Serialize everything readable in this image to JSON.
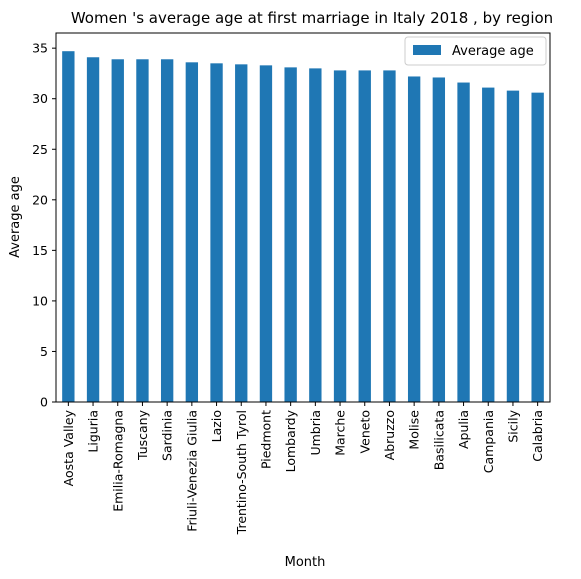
{
  "chart_data": {
    "type": "bar",
    "title": "Women 's average age at first marriage in Italy 2018 , by region",
    "xlabel": "Month",
    "ylabel": "Average age",
    "ylim": [
      0,
      36.5
    ],
    "yticks": [
      0,
      5,
      10,
      15,
      20,
      25,
      30,
      35
    ],
    "grid": false,
    "legend_position": "top-right",
    "bar_color": "#1f77b4",
    "categories": [
      "Aosta Valley",
      "Liguria",
      "Emilia-Romagna",
      "Tuscany",
      "Sardinia",
      "Friuli-Venezia Giulia",
      "Lazio",
      "Trentino-South Tyrol",
      "Piedmont",
      "Lombardy",
      "Umbria",
      "Marche",
      "Veneto",
      "Abruzzo",
      "Molise",
      "Basilicata",
      "Apulia",
      "Campania",
      "Sicily",
      "Calabria"
    ],
    "series": [
      {
        "name": "Average age",
        "values": [
          34.7,
          34.1,
          33.9,
          33.9,
          33.9,
          33.6,
          33.5,
          33.4,
          33.3,
          33.1,
          33.0,
          32.8,
          32.8,
          32.8,
          32.2,
          32.1,
          31.6,
          31.1,
          30.8,
          30.6
        ]
      }
    ]
  }
}
